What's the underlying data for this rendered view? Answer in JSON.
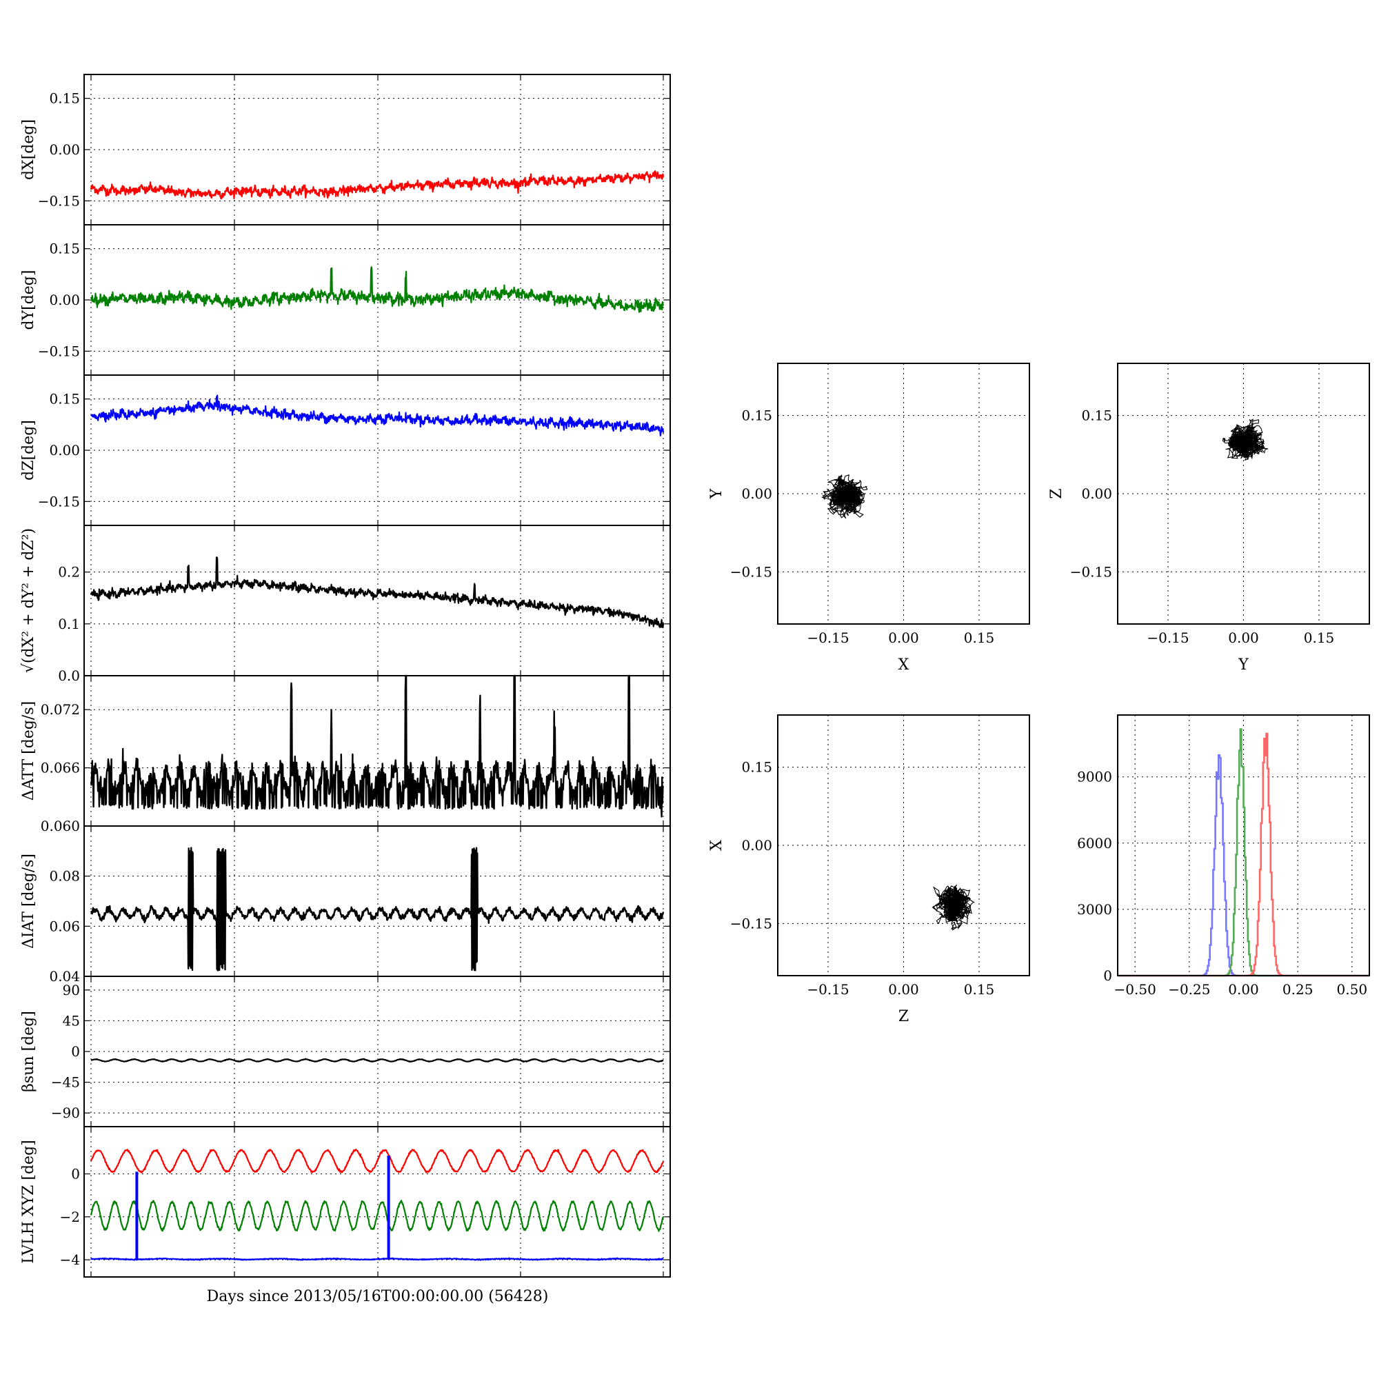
{
  "xlabel": "Days since 2013/05/16T00:00:00.00 (56428)",
  "chart_data": [
    {
      "id": "dx",
      "type": "line",
      "ylabel": "dX[deg]",
      "ylim": [
        -0.22,
        0.22
      ],
      "yticks": [
        "0.15",
        "0.00",
        "−0.15"
      ],
      "ytick_values": [
        0.15,
        0,
        -0.15
      ],
      "grid": true,
      "series": [
        {
          "color": "#ff0000",
          "base": [
            -0.115,
            -0.12,
            -0.115,
            -0.125,
            -0.13,
            -0.12,
            -0.125,
            -0.12,
            -0.125,
            -0.115,
            -0.11,
            -0.105,
            -0.1,
            -0.095,
            -0.1,
            -0.09,
            -0.095,
            -0.085,
            -0.08,
            -0.075
          ],
          "noise": 0.01,
          "spikes": []
        }
      ]
    },
    {
      "id": "dy",
      "type": "line",
      "ylabel": "dY[deg]",
      "ylim": [
        -0.22,
        0.22
      ],
      "yticks": [
        "0.15",
        "0.00",
        "−0.15"
      ],
      "ytick_values": [
        0.15,
        0,
        -0.15
      ],
      "grid": true,
      "series": [
        {
          "color": "#008000",
          "base": [
            0,
            0.005,
            0,
            0.01,
            0,
            -0.01,
            0.005,
            0.01,
            0.015,
            0.01,
            0.005,
            0.0,
            0.01,
            0.015,
            0.02,
            0.01,
            0.0,
            -0.01,
            -0.02,
            -0.015
          ],
          "noise": 0.012,
          "spikes": [
            [
              0.42,
              0.07
            ],
            [
              0.49,
              0.08
            ],
            [
              0.55,
              0.06
            ]
          ]
        }
      ]
    },
    {
      "id": "dz",
      "type": "line",
      "ylabel": "dZ[deg]",
      "ylim": [
        -0.22,
        0.22
      ],
      "yticks": [
        "0.15",
        "0.00",
        "−0.15"
      ],
      "ytick_values": [
        0.15,
        0,
        -0.15
      ],
      "grid": true,
      "series": [
        {
          "color": "#0000ff",
          "base": [
            0.1,
            0.105,
            0.11,
            0.12,
            0.13,
            0.12,
            0.11,
            0.1,
            0.095,
            0.09,
            0.095,
            0.09,
            0.085,
            0.09,
            0.085,
            0.08,
            0.08,
            0.075,
            0.07,
            0.06
          ],
          "noise": 0.01,
          "spikes": [
            [
              0.22,
              0.03
            ]
          ]
        }
      ]
    },
    {
      "id": "mag",
      "type": "line",
      "ylabel": "√(dX² + dY² + dZ²)",
      "ylim": [
        0,
        0.29
      ],
      "yticks": [
        "0.2",
        "0.1",
        "0.0"
      ],
      "ytick_values": [
        0.2,
        0.1,
        0
      ],
      "grid": true,
      "series": [
        {
          "color": "#000000",
          "base": [
            0.155,
            0.16,
            0.165,
            0.17,
            0.175,
            0.178,
            0.175,
            0.17,
            0.165,
            0.16,
            0.158,
            0.155,
            0.15,
            0.145,
            0.14,
            0.135,
            0.13,
            0.125,
            0.115,
            0.1
          ],
          "noise": 0.006,
          "spikes": [
            [
              0.17,
              0.04
            ],
            [
              0.22,
              0.05
            ],
            [
              0.67,
              0.025
            ]
          ]
        }
      ]
    },
    {
      "id": "datt",
      "type": "line",
      "ylabel": "ΔATT [deg/s]",
      "ylim": [
        0.06,
        0.0755
      ],
      "yticks": [
        "0.072",
        "0.066",
        "0.060"
      ],
      "ytick_values": [
        0.072,
        0.066,
        0.06
      ],
      "grid": true,
      "series": [
        {
          "color": "#000000",
          "osc": {
            "center": 0.0647,
            "amp": 0.0013,
            "cycles": 40,
            "noise": 0.0006
          },
          "spikes": [
            [
              0.35,
              0.0095
            ],
            [
              0.42,
              0.007
            ],
            [
              0.55,
              0.012
            ],
            [
              0.68,
              0.0065
            ],
            [
              0.74,
              0.0135
            ],
            [
              0.81,
              0.006
            ],
            [
              0.94,
              0.0135
            ]
          ]
        }
      ]
    },
    {
      "id": "diat",
      "type": "line",
      "ylabel": "ΔIAT [deg/s]",
      "ylim": [
        0.04,
        0.1
      ],
      "yticks": [
        "0.08",
        "0.06",
        "0.04"
      ],
      "ytick_values": [
        0.08,
        0.06,
        0.04
      ],
      "grid": true,
      "series": [
        {
          "color": "#000000",
          "osc": {
            "center": 0.065,
            "amp": 0.0018,
            "cycles": 40,
            "noise": 0.0006
          },
          "bursts": [
            [
              0.17,
              0.178
            ],
            [
              0.22,
              0.235
            ],
            [
              0.665,
              0.675
            ]
          ],
          "burst_range": [
            0.042,
            0.092
          ]
        }
      ]
    },
    {
      "id": "beta",
      "type": "line",
      "ylabel": "βsun [deg]",
      "ylim": [
        -110,
        110
      ],
      "yticks": [
        "90",
        "45",
        "0",
        "−45",
        "−90"
      ],
      "ytick_values": [
        90,
        45,
        0,
        -45,
        -90
      ],
      "grid": true,
      "series": [
        {
          "color": "#000000",
          "osc": {
            "center": -13,
            "amp": 1.6,
            "cycles": 30,
            "noise": 0.2
          }
        }
      ]
    },
    {
      "id": "lvlh",
      "type": "line",
      "ylabel": "LVLH XYZ [deg]",
      "ylim": [
        -4.8,
        2.2
      ],
      "yticks": [
        "0",
        "−2",
        "−4"
      ],
      "ytick_values": [
        0,
        -2,
        -4
      ],
      "grid": true,
      "series": [
        {
          "color": "#ff0000",
          "osc": {
            "center": 0.6,
            "amp": 0.5,
            "cycles": 20,
            "noise": 0.02
          }
        },
        {
          "color": "#008000",
          "osc": {
            "center": -1.95,
            "amp": 0.65,
            "cycles": 30,
            "noise": 0.03
          }
        },
        {
          "color": "#0000ff",
          "osc": {
            "center": -3.97,
            "amp": 0.02,
            "cycles": 10,
            "noise": 0.01
          },
          "bars": [
            [
              0.08,
              -3.97,
              0.1
            ],
            [
              0.52,
              -3.97,
              0.85
            ]
          ]
        }
      ]
    },
    {
      "id": "xy",
      "type": "scatter",
      "xlabel": "X",
      "ylabel": "Y",
      "xlim": [
        -0.25,
        0.25
      ],
      "ylim": [
        -0.25,
        0.25
      ],
      "ticks": [
        "−0.15",
        "0.00",
        "0.15"
      ],
      "tick_values": [
        -0.15,
        0,
        0.15
      ],
      "grid": true,
      "center": [
        -0.115,
        -0.005
      ],
      "spread": [
        0.022,
        0.028
      ],
      "color": "#000000"
    },
    {
      "id": "yz",
      "type": "scatter",
      "xlabel": "Y",
      "ylabel": "Z",
      "xlim": [
        -0.25,
        0.25
      ],
      "ylim": [
        -0.25,
        0.25
      ],
      "ticks": [
        "−0.15",
        "0.00",
        "0.15"
      ],
      "tick_values": [
        -0.15,
        0,
        0.15
      ],
      "grid": true,
      "center": [
        0.0,
        0.1
      ],
      "spread": [
        0.028,
        0.022
      ],
      "color": "#000000"
    },
    {
      "id": "zx",
      "type": "scatter",
      "xlabel": "Z",
      "ylabel": "X",
      "xlim": [
        -0.25,
        0.25
      ],
      "ylim": [
        -0.25,
        0.25
      ],
      "ticks": [
        "−0.15",
        "0.00",
        "0.15"
      ],
      "tick_values": [
        -0.15,
        0,
        0.15
      ],
      "grid": true,
      "center": [
        0.1,
        -0.115
      ],
      "spread": [
        0.022,
        0.028
      ],
      "color": "#000000"
    },
    {
      "id": "hist",
      "type": "histogram",
      "xlim": [
        -0.58,
        0.58
      ],
      "ylim": [
        0,
        11800
      ],
      "xticks": [
        "−0.50",
        "−0.25",
        "0.00",
        "0.25",
        "0.50"
      ],
      "xtick_values": [
        -0.5,
        -0.25,
        0,
        0.25,
        0.5
      ],
      "yticks": [
        "9000",
        "6000",
        "3000",
        "0"
      ],
      "ytick_values": [
        9000,
        6000,
        3000,
        0
      ],
      "grid": true,
      "series": [
        {
          "name": "",
          "color": "#7777ff",
          "mean": -0.115,
          "sd": 0.02,
          "peak": 9800
        },
        {
          "name": "",
          "color": "#55aa55",
          "mean": -0.015,
          "sd": 0.018,
          "peak": 10600
        },
        {
          "name": "",
          "color": "#ff6666",
          "mean": 0.1,
          "sd": 0.02,
          "peak": 10700
        }
      ]
    }
  ]
}
